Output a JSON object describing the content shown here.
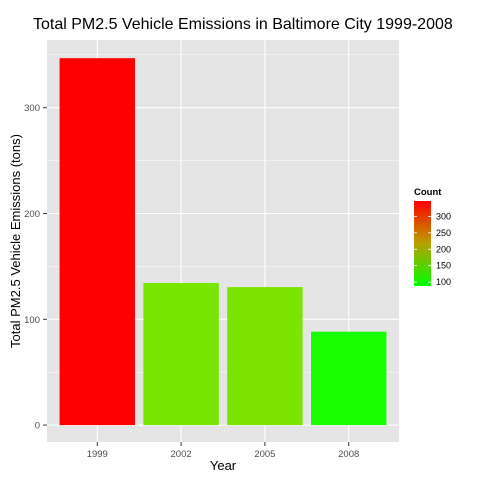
{
  "chart_data": {
    "type": "bar",
    "title": "Total PM2.5 Vehicle Emissions in Baltimore City 1999-2008",
    "xlabel": "Year",
    "ylabel": "Total PM2.5 Vehicle Emissions (tons)",
    "categories": [
      "1999",
      "2002",
      "2005",
      "2008"
    ],
    "values": [
      346.82,
      134.31,
      130.43,
      88.28
    ],
    "bar_colors": [
      "#ff0000",
      "#77e600",
      "#7be500",
      "#1aff00"
    ],
    "ylim": [
      -16,
      364
    ],
    "yticks": [
      0,
      100,
      200,
      300
    ],
    "grid": true,
    "panel_background": "#e5e5e5",
    "grid_color": "#ffffff",
    "legend": {
      "title": "Count",
      "position": "right",
      "min": 88.28,
      "max": 346.82,
      "low_color": "#00ff00",
      "high_color": "#ff0000",
      "ticks": [
        100,
        150,
        200,
        250,
        300
      ],
      "tick_labels": [
        "100",
        "150",
        "200",
        "250",
        "300"
      ]
    }
  }
}
